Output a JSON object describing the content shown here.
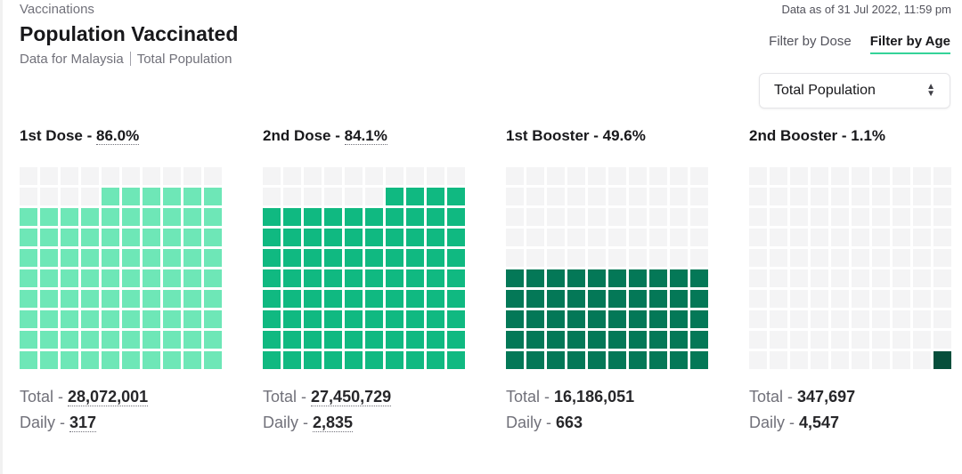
{
  "header": {
    "breadcrumb": "Vaccinations",
    "data_as_of": "Data as of 31 Jul 2022, 11:59 pm",
    "title": "Population Vaccinated",
    "subtitle_region": "Data for Malaysia",
    "subtitle_population": "Total Population"
  },
  "tabs": [
    {
      "label": "Filter by Dose",
      "active": false
    },
    {
      "label": "Filter by Age",
      "active": true
    }
  ],
  "select": {
    "value": "Total Population"
  },
  "colors": {
    "empty_cell": "#f4f4f5",
    "dose1": "#6ee7b7",
    "dose2": "#10b981",
    "booster1": "#047857",
    "booster2": "#064e3b",
    "active_tab_underline": "#34d399"
  },
  "doses": [
    {
      "label": "1st Dose",
      "percent_text": "86.0%",
      "percent": 86.0,
      "total_label": "Total",
      "total": "28,072,001",
      "daily_label": "Daily",
      "daily": "317",
      "color_key": "dose1",
      "dotted": true
    },
    {
      "label": "2nd Dose",
      "percent_text": "84.1%",
      "percent": 84.1,
      "total_label": "Total",
      "total": "27,450,729",
      "daily_label": "Daily",
      "daily": "2,835",
      "color_key": "dose2",
      "dotted": true
    },
    {
      "label": "1st Booster",
      "percent_text": "49.6%",
      "percent": 49.6,
      "total_label": "Total",
      "total": "16,186,051",
      "daily_label": "Daily",
      "daily": "663",
      "color_key": "booster1",
      "dotted": false
    },
    {
      "label": "2nd Booster",
      "percent_text": "1.1%",
      "percent": 1.1,
      "total_label": "Total",
      "total": "347,697",
      "daily_label": "Daily",
      "daily": "4,547",
      "color_key": "booster2",
      "dotted": false
    }
  ]
}
